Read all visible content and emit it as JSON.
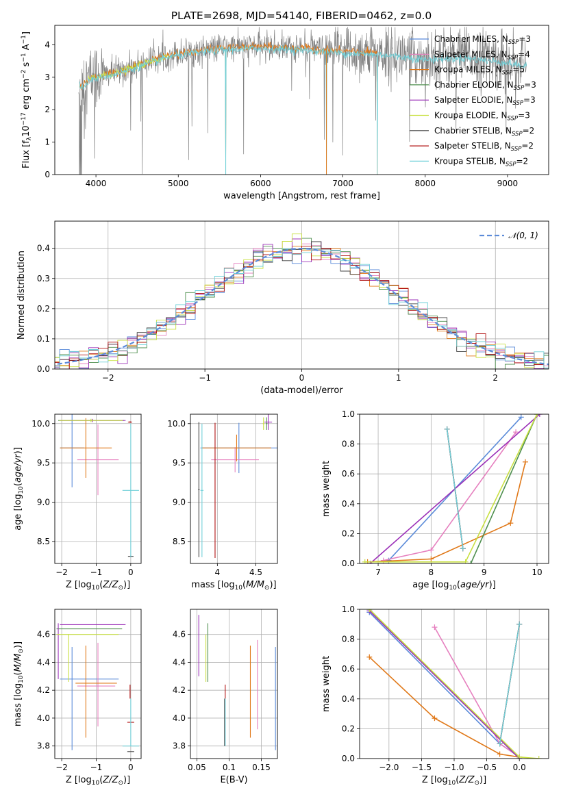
{
  "title": "PLATE=2698, MJD=54140, FIBERID=0462, z=0.0",
  "colors": {
    "chab_miles": "#5b8bd9",
    "salp_miles": "#e680bf",
    "krou_miles": "#e07818",
    "chab_elodie": "#4f8f4f",
    "salp_elodie": "#9b30b8",
    "krou_elodie": "#c8e040",
    "chab_stelib": "#404040",
    "salp_stelib": "#b01010",
    "krou_stelib": "#70d0d8",
    "data": "#808080",
    "normal": "#5b8bd9",
    "grid": "#b0b0b0"
  },
  "legend": [
    {
      "key": "chab_miles",
      "text": "Chabrier MILES, N",
      "sub": "SSP",
      "n": "=3"
    },
    {
      "key": "salp_miles",
      "text": "Salpeter MILES, N",
      "sub": "SSP",
      "n": "=4"
    },
    {
      "key": "krou_miles",
      "text": "Kroupa MILES, N",
      "sub": "SSP",
      "n": "=5"
    },
    {
      "key": "chab_elodie",
      "text": "Chabrier ELODIE, N",
      "sub": "SSP",
      "n": "=3"
    },
    {
      "key": "salp_elodie",
      "text": "Salpeter ELODIE, N",
      "sub": "SSP",
      "n": "=3"
    },
    {
      "key": "krou_elodie",
      "text": "Kroupa ELODIE, N",
      "sub": "SSP",
      "n": "=3"
    },
    {
      "key": "chab_stelib",
      "text": "Chabrier STELIB, N",
      "sub": "SSP",
      "n": "=2"
    },
    {
      "key": "salp_stelib",
      "text": "Salpeter STELIB, N",
      "sub": "SSP",
      "n": "=2"
    },
    {
      "key": "krou_stelib",
      "text": "Kroupa STELIB, N",
      "sub": "SSP",
      "n": "=2"
    }
  ],
  "chart_data": [
    {
      "type": "line",
      "id": "spectrum",
      "xlabel": "wavelength [Angstrom, rest frame]",
      "ylabel": "Flux [fλ10⁻¹⁷ erg cm⁻² s⁻¹ A⁻¹]",
      "xlim": [
        3500,
        9500
      ],
      "ylim": [
        0,
        4.6
      ],
      "xticks": [
        4000,
        5000,
        6000,
        7000,
        8000,
        9000
      ],
      "yticks": [
        0,
        1,
        2,
        3,
        4
      ],
      "continuum": [
        [
          3800,
          2.7
        ],
        [
          3950,
          3.0
        ],
        [
          4300,
          3.2
        ],
        [
          4900,
          3.7
        ],
        [
          5500,
          3.9
        ],
        [
          6000,
          3.95
        ],
        [
          6500,
          3.9
        ],
        [
          7000,
          3.8
        ],
        [
          7500,
          3.75
        ],
        [
          8000,
          3.6
        ],
        [
          8500,
          3.65
        ],
        [
          9000,
          3.5
        ],
        [
          9200,
          3.4
        ]
      ],
      "model_end": 7420,
      "model_dips": [
        [
          5577,
          0
        ],
        [
          6800,
          0
        ],
        [
          7420,
          0
        ]
      ]
    },
    {
      "type": "line",
      "id": "residuals",
      "xlabel": "(data-model)/error",
      "ylabel": "Normed distribution",
      "xlim": [
        -2.55,
        2.55
      ],
      "ylim": [
        0,
        0.49
      ],
      "xticks": [
        -2,
        -1,
        0,
        1,
        2
      ],
      "yticks": [
        0,
        0.1,
        0.2,
        0.3,
        0.4
      ],
      "legend": "𝒩(0, 1)",
      "normal": {
        "mean": 0,
        "sigma": 1
      }
    },
    {
      "type": "scatter",
      "id": "z_age",
      "xlabel": "Z [log10(Z/Z⊙)]",
      "ylabel": "age [log10(age/yr)]",
      "xlim": [
        -2.2,
        0.3
      ],
      "ylim": [
        8.22,
        10.12
      ],
      "xticks": [
        -2,
        -1,
        0
      ],
      "yticks": [
        8.5,
        9.0,
        9.5,
        10.0
      ],
      "errorbars": [
        {
          "key": "chab_miles",
          "x": -1.7,
          "xerr": 0.35,
          "y": 9.69,
          "yerr": 0.5
        },
        {
          "key": "salp_miles",
          "x": -0.95,
          "xerr": 0.6,
          "y": 9.54,
          "yerr": 0.45
        },
        {
          "key": "krou_miles",
          "x": -1.3,
          "xerr": 0.75,
          "y": 9.69,
          "yerr": 0.38
        },
        {
          "key": "chab_elodie",
          "x": -1.15,
          "xerr": 0.95,
          "y": 10.04,
          "yerr": 0.02
        },
        {
          "key": "salp_elodie",
          "x": -1.1,
          "xerr": 0.95,
          "y": 10.04,
          "yerr": 0.02
        },
        {
          "key": "krou_elodie",
          "x": -1.15,
          "xerr": 0.92,
          "y": 10.04,
          "yerr": 0.02
        },
        {
          "key": "chab_stelib",
          "x": 0.0,
          "xerr": 0.08,
          "y": 8.31,
          "yerr": 0.01
        },
        {
          "key": "salp_stelib",
          "x": -0.02,
          "xerr": 0.06,
          "y": 10.02,
          "yerr": 0.01
        },
        {
          "key": "krou_stelib",
          "x": 0.0,
          "xerr": 0.24,
          "y": 9.15,
          "yerr": 0.85
        }
      ]
    },
    {
      "type": "scatter",
      "id": "mass_age",
      "xlabel": "mass [log10(M/M⊙)]",
      "ylabel": "",
      "xlim": [
        3.65,
        4.78
      ],
      "ylim": [
        8.22,
        10.12
      ],
      "xticks": [
        4.0,
        4.5
      ],
      "yticks": [
        8.5,
        9.0,
        9.5,
        10.0
      ],
      "errorbars": [
        {
          "key": "chab_miles",
          "x": 4.28,
          "xerr": 0.5,
          "y": 9.69,
          "yerr": 0.32
        },
        {
          "key": "salp_miles",
          "x": 4.23,
          "xerr": 0.31,
          "y": 9.54,
          "yerr": 0.16
        },
        {
          "key": "krou_miles",
          "x": 4.25,
          "xerr": 0.45,
          "y": 9.69,
          "yerr": 0.17
        },
        {
          "key": "chab_elodie",
          "x": 4.64,
          "xerr": 0.01,
          "y": 10.0,
          "yerr": 0.08
        },
        {
          "key": "salp_elodie",
          "x": 4.66,
          "xerr": 0.05,
          "y": 10.02,
          "yerr": 0.1
        },
        {
          "key": "krou_elodie",
          "x": 4.6,
          "xerr": 0.01,
          "y": 10.0,
          "yerr": 0.08
        },
        {
          "key": "chab_stelib",
          "x": 3.76,
          "xerr": 0.01,
          "y": 9.16,
          "yerr": 0.86
        },
        {
          "key": "salp_stelib",
          "x": 3.97,
          "xerr": 0.0,
          "y": 9.15,
          "yerr": 0.86
        },
        {
          "key": "krou_stelib",
          "x": 3.8,
          "xerr": 0.02,
          "y": 9.15,
          "yerr": 0.85
        }
      ]
    },
    {
      "type": "line",
      "id": "age_weight",
      "xlabel": "age [log10(age/yr)]",
      "ylabel": "mass weight",
      "xlim": [
        6.65,
        10.22
      ],
      "ylim": [
        0,
        1
      ],
      "xticks": [
        7,
        8,
        9,
        10
      ],
      "yticks": [
        0.0,
        0.2,
        0.4,
        0.6,
        0.8,
        1.0
      ],
      "series": [
        {
          "key": "chab_miles",
          "x": [
            7.2,
            9.7
          ],
          "y": [
            0.02,
            0.98
          ]
        },
        {
          "key": "salp_miles",
          "x": [
            7.1,
            8.0,
            9.6
          ],
          "y": [
            0.02,
            0.09,
            0.88
          ]
        },
        {
          "key": "krou_miles",
          "x": [
            6.8,
            8.0,
            9.5,
            9.78
          ],
          "y": [
            0.01,
            0.03,
            0.27,
            0.68
          ]
        },
        {
          "key": "chab_elodie",
          "x": [
            8.75,
            10.0
          ],
          "y": [
            0.0,
            1.0
          ]
        },
        {
          "key": "salp_elodie",
          "x": [
            6.85,
            10.05
          ],
          "y": [
            0.0,
            1.0
          ]
        },
        {
          "key": "krou_elodie",
          "x": [
            6.75,
            8.65,
            10.0
          ],
          "y": [
            0.01,
            0.01,
            1.0
          ]
        },
        {
          "key": "chab_stelib",
          "x": [
            8.3,
            8.6
          ],
          "y": [
            0.9,
            0.1
          ]
        },
        {
          "key": "salp_stelib",
          "x": [
            8.3,
            8.6
          ],
          "y": [
            0.9,
            0.1
          ]
        },
        {
          "key": "krou_stelib",
          "x": [
            8.3,
            8.6
          ],
          "y": [
            0.9,
            0.1
          ]
        }
      ]
    },
    {
      "type": "scatter",
      "id": "z_mass",
      "xlabel": "Z [log10(Z/Z⊙)]",
      "ylabel": "mass [log10(M/M⊙)]",
      "xlim": [
        -2.2,
        0.3
      ],
      "ylim": [
        3.71,
        4.78
      ],
      "xticks": [
        -2,
        -1,
        0
      ],
      "yticks": [
        3.8,
        4.0,
        4.2,
        4.4,
        4.6
      ],
      "errorbars": [
        {
          "key": "chab_miles",
          "x": -1.2,
          "xerr": 0.85,
          "y": 4.28,
          "yerr": 0.0
        },
        {
          "key": "chab_miles",
          "x": -1.7,
          "xerr": 0.0,
          "y": 4.14,
          "yerr": 0.37
        },
        {
          "key": "salp_miles",
          "x": -1.0,
          "xerr": 0.55,
          "y": 4.23,
          "yerr": 0.0
        },
        {
          "key": "salp_miles",
          "x": -0.95,
          "xerr": 0.0,
          "y": 4.24,
          "yerr": 0.3
        },
        {
          "key": "krou_miles",
          "x": -1.0,
          "xerr": 0.6,
          "y": 4.25,
          "yerr": 0.0
        },
        {
          "key": "krou_miles",
          "x": -1.3,
          "xerr": 0.0,
          "y": 4.19,
          "yerr": 0.33
        },
        {
          "key": "chab_elodie",
          "x": -1.2,
          "xerr": 0.95,
          "y": 4.64,
          "yerr": 0.0
        },
        {
          "key": "salp_elodie",
          "x": -1.1,
          "xerr": 0.95,
          "y": 4.67,
          "yerr": 0.0
        },
        {
          "key": "salp_elodie",
          "x": -2.1,
          "xerr": 0.0,
          "y": 4.48,
          "yerr": 0.2
        },
        {
          "key": "krou_elodie",
          "x": -1.25,
          "xerr": 0.9,
          "y": 4.6,
          "yerr": 0.0
        },
        {
          "key": "krou_elodie",
          "x": -1.8,
          "xerr": 0.0,
          "y": 4.43,
          "yerr": 0.17
        },
        {
          "key": "chab_stelib",
          "x": 0.0,
          "xerr": 0.1,
          "y": 3.76,
          "yerr": 0.0
        },
        {
          "key": "salp_stelib",
          "x": 0.0,
          "xerr": 0.1,
          "y": 3.97,
          "yerr": 0.0
        },
        {
          "key": "salp_stelib",
          "x": -0.02,
          "xerr": 0.0,
          "y": 4.19,
          "yerr": 0.05
        },
        {
          "key": "krou_stelib",
          "x": 0.0,
          "xerr": 0.24,
          "y": 3.8,
          "yerr": 0.0
        },
        {
          "key": "krou_stelib",
          "x": 0.0,
          "xerr": 0.0,
          "y": 3.97,
          "yerr": 0.17
        }
      ]
    },
    {
      "type": "scatter",
      "id": "ebv_mass",
      "xlabel": "E(B-V)",
      "ylabel": "",
      "xlim": [
        0.04,
        0.175
      ],
      "ylim": [
        3.71,
        4.78
      ],
      "xticks": [
        0.05,
        0.1,
        0.15
      ],
      "yticks": [
        3.8,
        4.0,
        4.2,
        4.4,
        4.6
      ],
      "errorbars": [
        {
          "key": "chab_miles",
          "x": 0.172,
          "xerr": 0.0,
          "y": 4.14,
          "yerr": 0.37
        },
        {
          "key": "salp_miles",
          "x": 0.144,
          "xerr": 0.0,
          "y": 4.24,
          "yerr": 0.32
        },
        {
          "key": "krou_miles",
          "x": 0.133,
          "xerr": 0.0,
          "y": 4.19,
          "yerr": 0.33
        },
        {
          "key": "chab_elodie",
          "x": 0.067,
          "xerr": 0.0,
          "y": 4.47,
          "yerr": 0.21
        },
        {
          "key": "salp_elodie",
          "x": 0.053,
          "xerr": 0.0,
          "y": 4.52,
          "yerr": 0.22
        },
        {
          "key": "krou_elodie",
          "x": 0.064,
          "xerr": 0.0,
          "y": 4.43,
          "yerr": 0.17
        },
        {
          "key": "chab_stelib",
          "x": 0.093,
          "xerr": 0.0,
          "y": 3.97,
          "yerr": 0.17
        },
        {
          "key": "salp_stelib",
          "x": 0.094,
          "xerr": 0.0,
          "y": 4.19,
          "yerr": 0.05
        },
        {
          "key": "krou_stelib",
          "x": 0.094,
          "xerr": 0.0,
          "y": 3.97,
          "yerr": 0.17
        }
      ]
    },
    {
      "type": "line",
      "id": "z_weight",
      "xlabel": "Z [log10(Z/Z⊙)]",
      "ylabel": "mass weight",
      "xlim": [
        -2.45,
        0.45
      ],
      "ylim": [
        0,
        1
      ],
      "xticks": [
        -2.0,
        -1.5,
        -1.0,
        -0.5,
        0.0
      ],
      "yticks": [
        0.0,
        0.2,
        0.4,
        0.6,
        0.8,
        1.0
      ],
      "series": [
        {
          "key": "chab_miles",
          "x": [
            -2.3,
            -0.3,
            0.0
          ],
          "y": [
            0.98,
            0.1,
            0.01
          ]
        },
        {
          "key": "salp_miles",
          "x": [
            -1.3,
            -0.3,
            0.0
          ],
          "y": [
            0.88,
            0.1,
            0.01
          ]
        },
        {
          "key": "krou_miles",
          "x": [
            -2.3,
            -1.3,
            -0.3,
            0.0
          ],
          "y": [
            0.68,
            0.27,
            0.03,
            0.01
          ]
        },
        {
          "key": "chab_elodie",
          "x": [
            -2.3,
            0.0
          ],
          "y": [
            1.0,
            0.0
          ]
        },
        {
          "key": "salp_elodie",
          "x": [
            -2.3,
            0.0
          ],
          "y": [
            0.99,
            0.0
          ]
        },
        {
          "key": "krou_elodie",
          "x": [
            -2.3,
            0.0,
            0.3
          ],
          "y": [
            1.0,
            0.01,
            0.0
          ]
        },
        {
          "key": "chab_stelib",
          "x": [
            -0.3,
            0.0
          ],
          "y": [
            0.1,
            0.9
          ]
        },
        {
          "key": "salp_stelib",
          "x": [
            -0.3,
            0.0
          ],
          "y": [
            0.1,
            0.9
          ]
        },
        {
          "key": "krou_stelib",
          "x": [
            -0.3,
            0.0
          ],
          "y": [
            0.1,
            0.9
          ]
        }
      ]
    }
  ]
}
